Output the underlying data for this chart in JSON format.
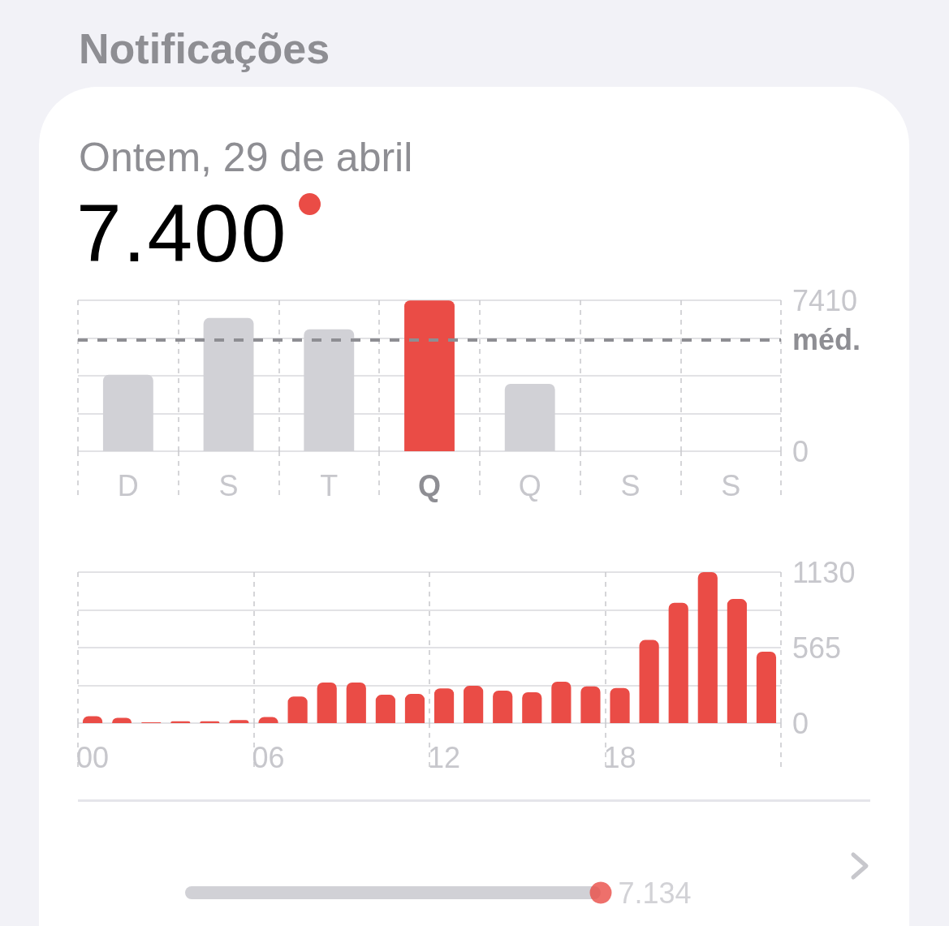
{
  "chart_data": [
    {
      "type": "bar",
      "title": "Notificações",
      "subtitle": "Ontem, 29 de abril",
      "annotations": [
        "7.400"
      ],
      "categories": [
        "D",
        "S",
        "T",
        "Q",
        "Q",
        "S",
        "S"
      ],
      "values": [
        3750,
        6540,
        5990,
        7400,
        3310,
        null,
        null
      ],
      "colors": [
        "#d1d1d6",
        "#d1d1d6",
        "#d1d1d6",
        "#ea4c46",
        "#d1d1d6",
        "#d1d1d6",
        "#d1d1d6"
      ],
      "ylim": [
        0,
        7410
      ],
      "yticks": [
        0,
        {
          "value": 1852.5,
          "label": null
        },
        {
          "value": 3705,
          "label": null
        },
        {
          "value": 5557.5,
          "label": null
        },
        7410
      ],
      "grid": true,
      "ref_lines": [
        {
          "axis": "y",
          "value": 5470,
          "label": "méd.",
          "color": "#8e8e93",
          "line_style": "dashed"
        }
      ]
    },
    {
      "type": "bar",
      "categories": [
        "00",
        null,
        null,
        null,
        null,
        null,
        "06",
        null,
        null,
        null,
        null,
        null,
        "12",
        null,
        null,
        null,
        null,
        null,
        "18",
        null,
        null,
        null,
        null,
        null
      ],
      "values": [
        52,
        40,
        6,
        13,
        13,
        23,
        46,
        199,
        304,
        304,
        212,
        218,
        260,
        279,
        243,
        231,
        310,
        275,
        263,
        622,
        901,
        1130,
        929,
        535
      ],
      "color": "#ea4c46",
      "ylim": [
        0,
        1130
      ],
      "yticks": [
        0,
        {
          "value": 282.5,
          "label": null
        },
        565,
        {
          "value": 847.5,
          "label": null
        },
        1130
      ],
      "grid": true
    },
    {
      "type": "other",
      "values": [
        7134
      ],
      "value_labels": [
        "7.134"
      ],
      "color": "#ea4c46"
    }
  ]
}
